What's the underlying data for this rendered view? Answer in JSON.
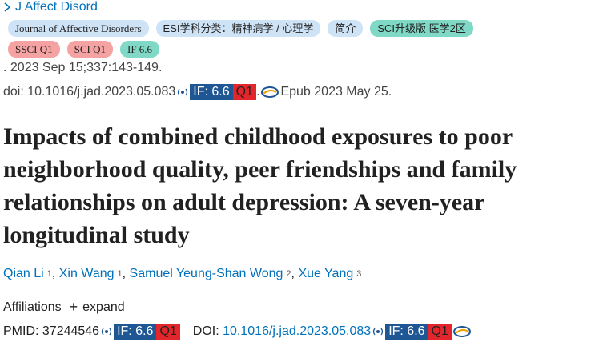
{
  "journal_link": "J Affect Disord",
  "badges_row1": [
    "Journal of Affective Disorders",
    "ESI学科分类：精神病学 / 心理学",
    "简介",
    "SCI升级版 医学2区"
  ],
  "badges_row2": [
    "SSCI Q1",
    "SCI Q1",
    "IF 6.6"
  ],
  "citation": ". 2023 Sep 15;337:143-149.",
  "doi_line": {
    "doi": "doi: 10.1016/j.jad.2023.05.083",
    "if": "IF: 6.6",
    "quartile": "Q1",
    "dot": ".",
    "epub": "Epub 2023 May 25."
  },
  "title_lines": [
    "Impacts of combined childhood exposures to poor",
    "neighborhood quality, peer friendships and family",
    "relationships on adult depression: A seven-year",
    "longitudinal study"
  ],
  "author_separator": ",",
  "authors": [
    {
      "name": "Qian Li",
      "aff": "1"
    },
    {
      "name": "Xin Wang",
      "aff": "1"
    },
    {
      "name": "Samuel Yeung-Shan Wong",
      "aff": "2"
    },
    {
      "name": "Xue Yang",
      "aff": "3"
    }
  ],
  "affiliations": {
    "label": "Affiliations",
    "plus": "+",
    "expand": "expand"
  },
  "ids": {
    "pmid": "PMID: 37244546",
    "pmid_if": "IF: 6.6",
    "pmid_q": "Q1",
    "doi_label": "DOI:",
    "doi": "10.1016/j.jad.2023.05.083",
    "doi_if": "IF: 6.6",
    "doi_q": "Q1"
  }
}
